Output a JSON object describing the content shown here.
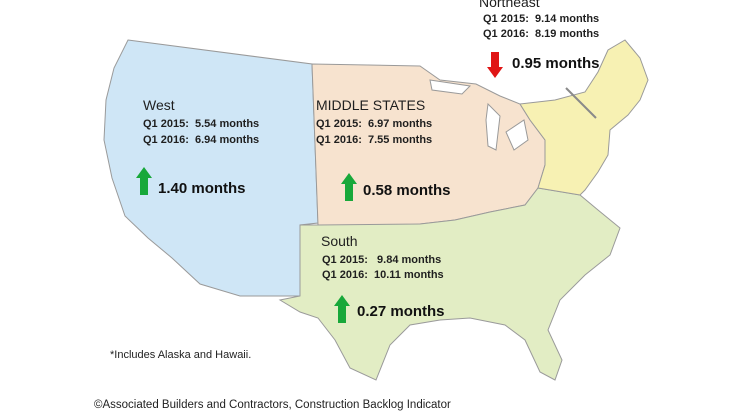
{
  "colors": {
    "west": "#cfe6f6",
    "middle": "#f7e3cf",
    "south": "#e2edc4",
    "northeast": "#f7f1b3",
    "border": "#9a9a9a",
    "up_arrow": "#18a83a",
    "down_arrow": "#e01515"
  },
  "regions": {
    "west": {
      "name": "West",
      "q2015": "Q1 2015:  5.54 months",
      "q2016": "Q1 2016:  6.94 months",
      "change": "1.40 months",
      "direction": "up"
    },
    "middle": {
      "name": "MIDDLE STATES",
      "q2015": "Q1 2015:  6.97 months",
      "q2016": "Q1 2016:  7.55 months",
      "change": "0.58 months",
      "direction": "up"
    },
    "south": {
      "name": "South",
      "q2015": "Q1 2015:   9.84 months",
      "q2016": "Q1 2016:  10.11 months",
      "change": "0.27 months",
      "direction": "up"
    },
    "northeast": {
      "name": "Northeast",
      "q2015": "Q1 2015:  9.14 months",
      "q2016": "Q1 2016:  8.19 months",
      "change": "0.95 months",
      "direction": "down"
    }
  },
  "footnote": "*Includes Alaska and Hawaii.",
  "credit": "©Associated Builders and Contractors, Construction Backlog Indicator"
}
